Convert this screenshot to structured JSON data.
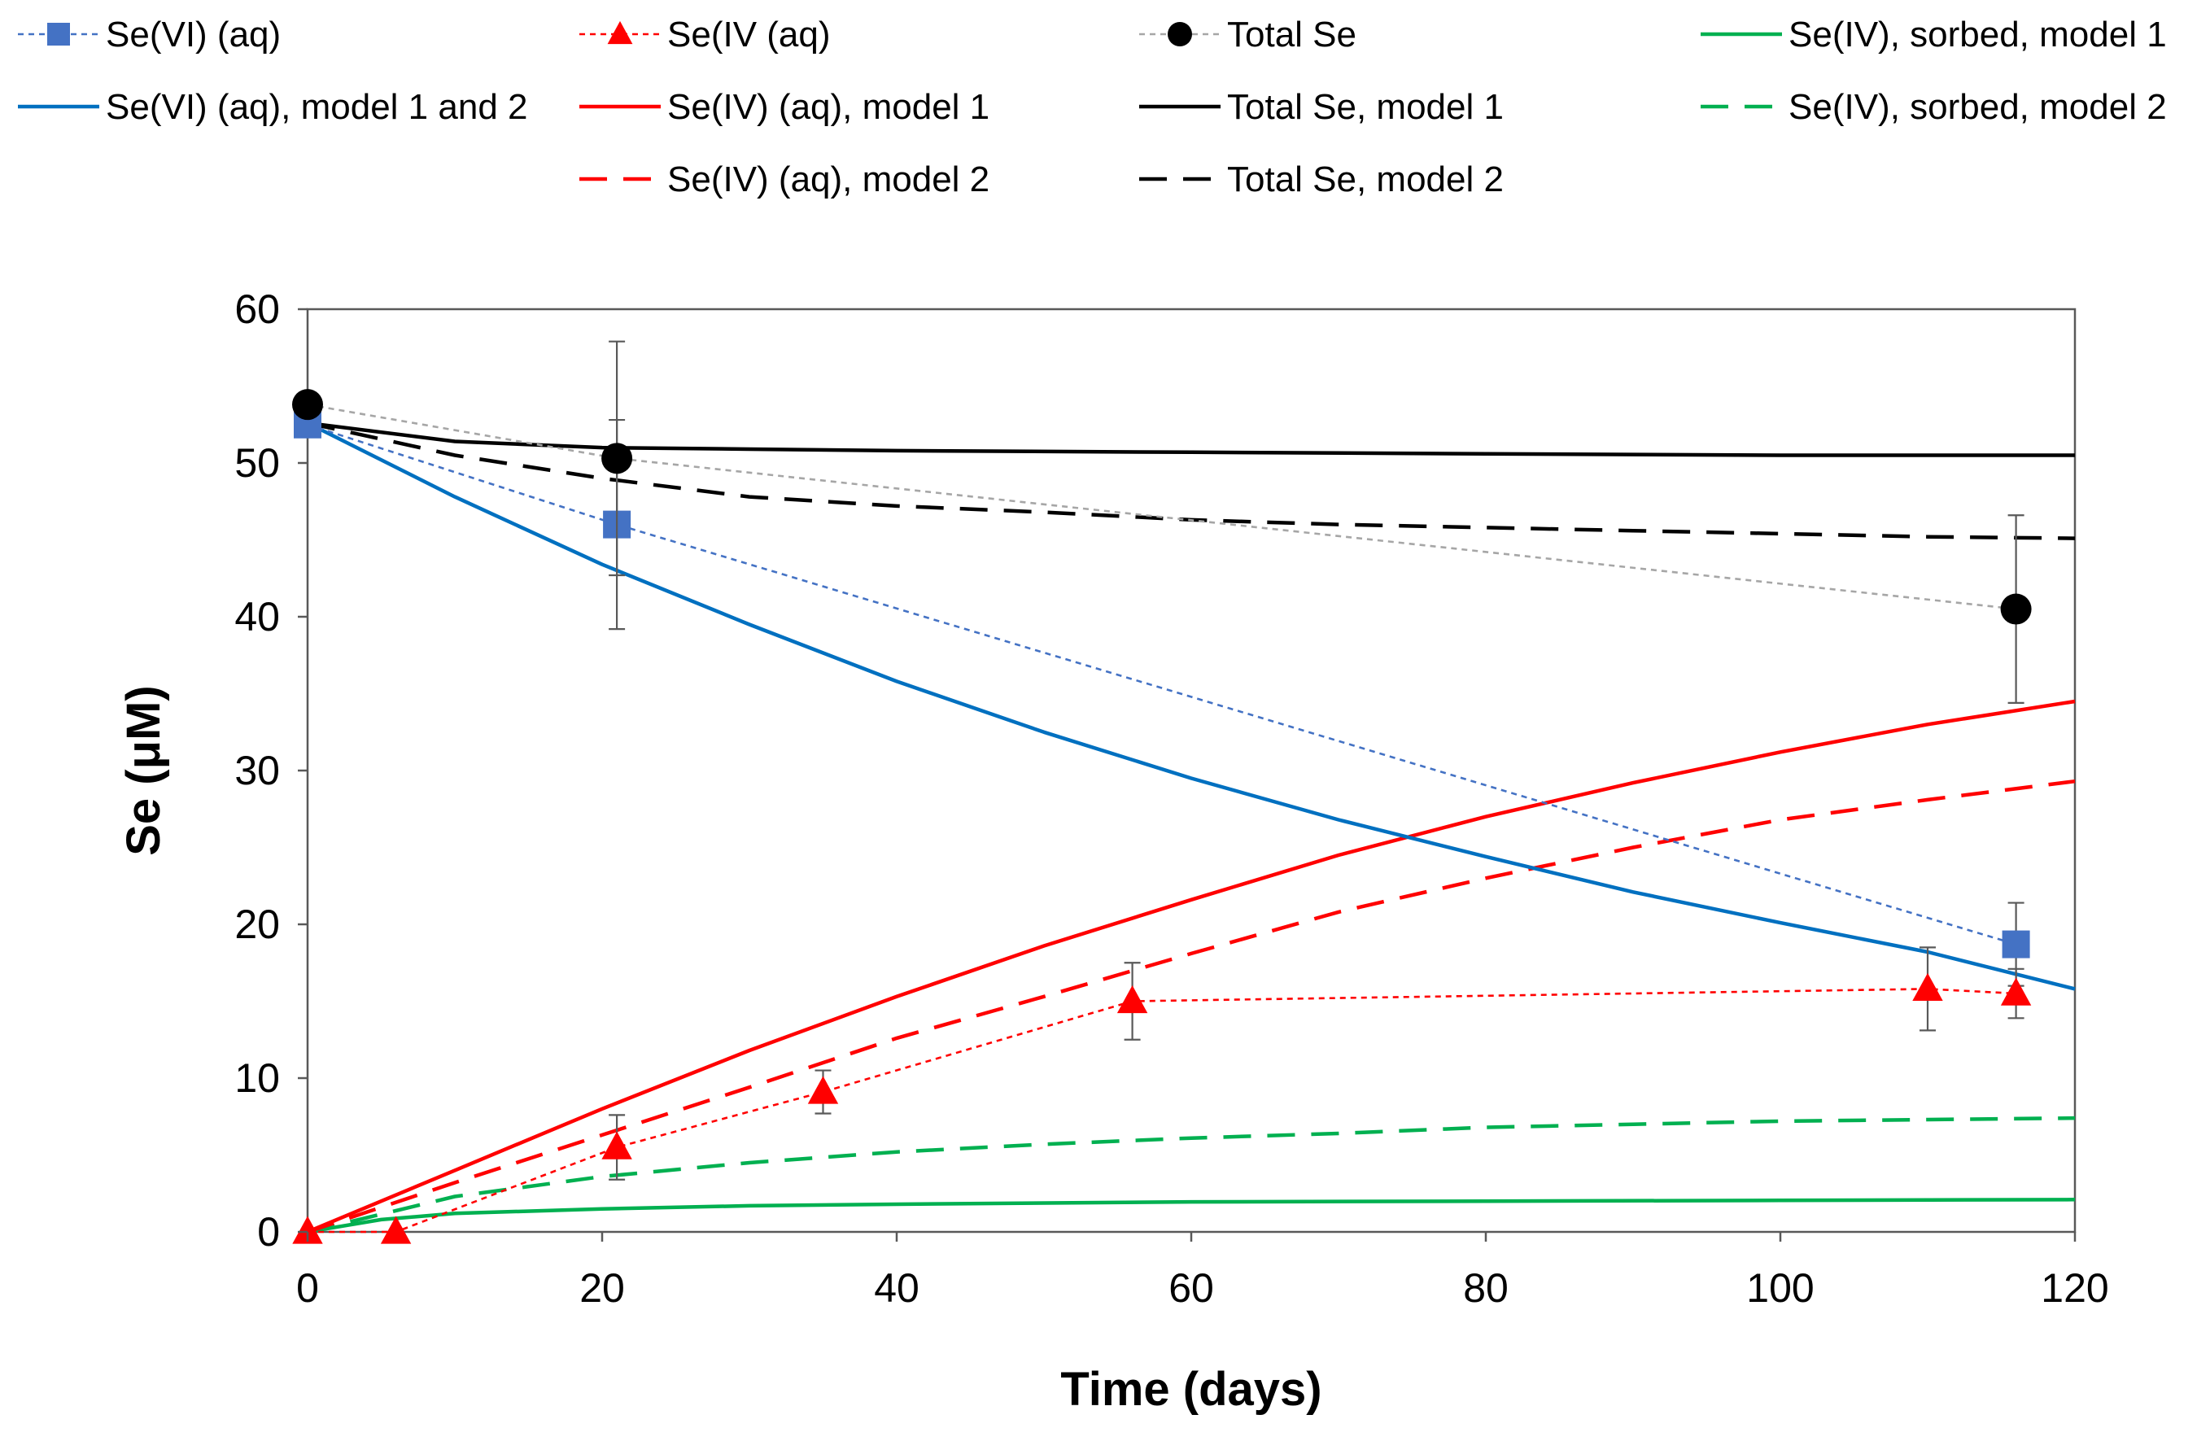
{
  "chart_data": {
    "type": "line",
    "title": "",
    "xlabel": "Time (days)",
    "ylabel": "Se (μM)",
    "xlim": [
      0,
      120
    ],
    "ylim": [
      0,
      60
    ],
    "xticks": [
      0,
      20,
      40,
      60,
      80,
      100,
      120
    ],
    "yticks": [
      0,
      10,
      20,
      30,
      40,
      50,
      60
    ],
    "grid": false,
    "legend_position": "top",
    "series": [
      {
        "name": "Se(VI) (aq)",
        "kind": "observed",
        "color": "#4472C4",
        "line_style": "dotted",
        "marker": "square",
        "x": [
          0,
          21,
          116
        ],
        "y": [
          52.5,
          46.0,
          18.7
        ],
        "error": [
          0,
          6.8,
          2.7
        ]
      },
      {
        "name": "Se(IV (aq)",
        "kind": "observed",
        "color": "#FF0000",
        "line_style": "dotted",
        "marker": "triangle",
        "x": [
          0,
          6,
          21,
          35,
          56,
          110,
          116
        ],
        "y": [
          0,
          0,
          5.5,
          9.1,
          15.0,
          15.8,
          15.5
        ],
        "error": [
          0,
          0,
          2.1,
          1.4,
          2.5,
          2.7,
          1.6
        ]
      },
      {
        "name": "Total Se",
        "kind": "observed",
        "color": "#000000",
        "line_color": "#A6A6A6",
        "line_style": "dotted",
        "marker": "circle",
        "x": [
          0,
          21,
          116
        ],
        "y": [
          53.8,
          50.3,
          40.5
        ],
        "error": [
          0,
          7.6,
          6.1
        ]
      },
      {
        "name": "Se(IV), sorbed,  model 1",
        "kind": "model",
        "color": "#00B050",
        "line_style": "solid",
        "x": [
          0,
          5,
          10,
          20,
          30,
          40,
          60,
          80,
          100,
          120
        ],
        "y": [
          0,
          0.8,
          1.2,
          1.5,
          1.7,
          1.8,
          1.95,
          2.0,
          2.05,
          2.1
        ]
      },
      {
        "name": "Se(VI) (aq), model 1 and 2",
        "kind": "model",
        "color": "#0070C0",
        "line_style": "solid",
        "x": [
          0,
          10,
          20,
          30,
          40,
          50,
          60,
          70,
          80,
          90,
          100,
          110,
          120
        ],
        "y": [
          52.6,
          47.8,
          43.4,
          39.5,
          35.8,
          32.5,
          29.5,
          26.8,
          24.4,
          22.1,
          20.1,
          18.2,
          15.8
        ]
      },
      {
        "name": "Se(IV) (aq), model 1",
        "kind": "model",
        "color": "#FF0000",
        "line_style": "solid",
        "x": [
          0,
          10,
          20,
          30,
          40,
          50,
          60,
          70,
          80,
          90,
          100,
          110,
          120
        ],
        "y": [
          0,
          4.0,
          8.0,
          11.8,
          15.3,
          18.6,
          21.6,
          24.5,
          27.0,
          29.2,
          31.2,
          33.0,
          34.5
        ]
      },
      {
        "name": "Total Se, model 1",
        "kind": "model",
        "color": "#000000",
        "line_style": "solid",
        "x": [
          0,
          10,
          20,
          30,
          40,
          60,
          80,
          100,
          120
        ],
        "y": [
          52.6,
          51.4,
          51.0,
          50.9,
          50.8,
          50.7,
          50.6,
          50.5,
          50.5
        ]
      },
      {
        "name": "Se(IV), sorbed, model 2",
        "kind": "model",
        "color": "#00B050",
        "line_style": "dashed",
        "x": [
          0,
          10,
          20,
          30,
          40,
          50,
          60,
          70,
          80,
          90,
          100,
          110,
          120
        ],
        "y": [
          0,
          2.3,
          3.6,
          4.5,
          5.2,
          5.7,
          6.1,
          6.4,
          6.8,
          7.0,
          7.2,
          7.3,
          7.4
        ]
      },
      {
        "name": "Se(IV) (aq), model 2",
        "kind": "model",
        "color": "#FF0000",
        "line_style": "dashed",
        "x": [
          0,
          10,
          20,
          30,
          40,
          50,
          60,
          70,
          80,
          90,
          100,
          110,
          120
        ],
        "y": [
          0,
          3.2,
          6.3,
          9.4,
          12.6,
          15.3,
          18.1,
          20.8,
          23.0,
          25.0,
          26.8,
          28.1,
          29.3
        ]
      },
      {
        "name": "Total Se, model 2",
        "kind": "model",
        "color": "#000000",
        "line_style": "dashed",
        "x": [
          0,
          10,
          20,
          30,
          40,
          50,
          60,
          70,
          80,
          90,
          100,
          110,
          120
        ],
        "y": [
          52.6,
          50.5,
          49.0,
          47.8,
          47.2,
          46.8,
          46.3,
          46.0,
          45.8,
          45.6,
          45.4,
          45.2,
          45.1
        ]
      }
    ],
    "legend": [
      {
        "label": "Se(VI) (aq)",
        "series": 0
      },
      {
        "label": "Se(IV (aq)",
        "series": 1
      },
      {
        "label": "Total Se",
        "series": 2
      },
      {
        "label": "Se(IV), sorbed,  model 1",
        "series": 3
      },
      {
        "label": "Se(VI) (aq), model 1 and 2",
        "series": 4
      },
      {
        "label": "Se(IV) (aq), model 1",
        "series": 5
      },
      {
        "label": "Total Se, model 1",
        "series": 6
      },
      {
        "label": "Se(IV), sorbed, model 2",
        "series": 7
      },
      {
        "label": "Se(IV) (aq), model 2",
        "series": 8
      },
      {
        "label": "Total Se, model 2",
        "series": 9
      }
    ]
  }
}
